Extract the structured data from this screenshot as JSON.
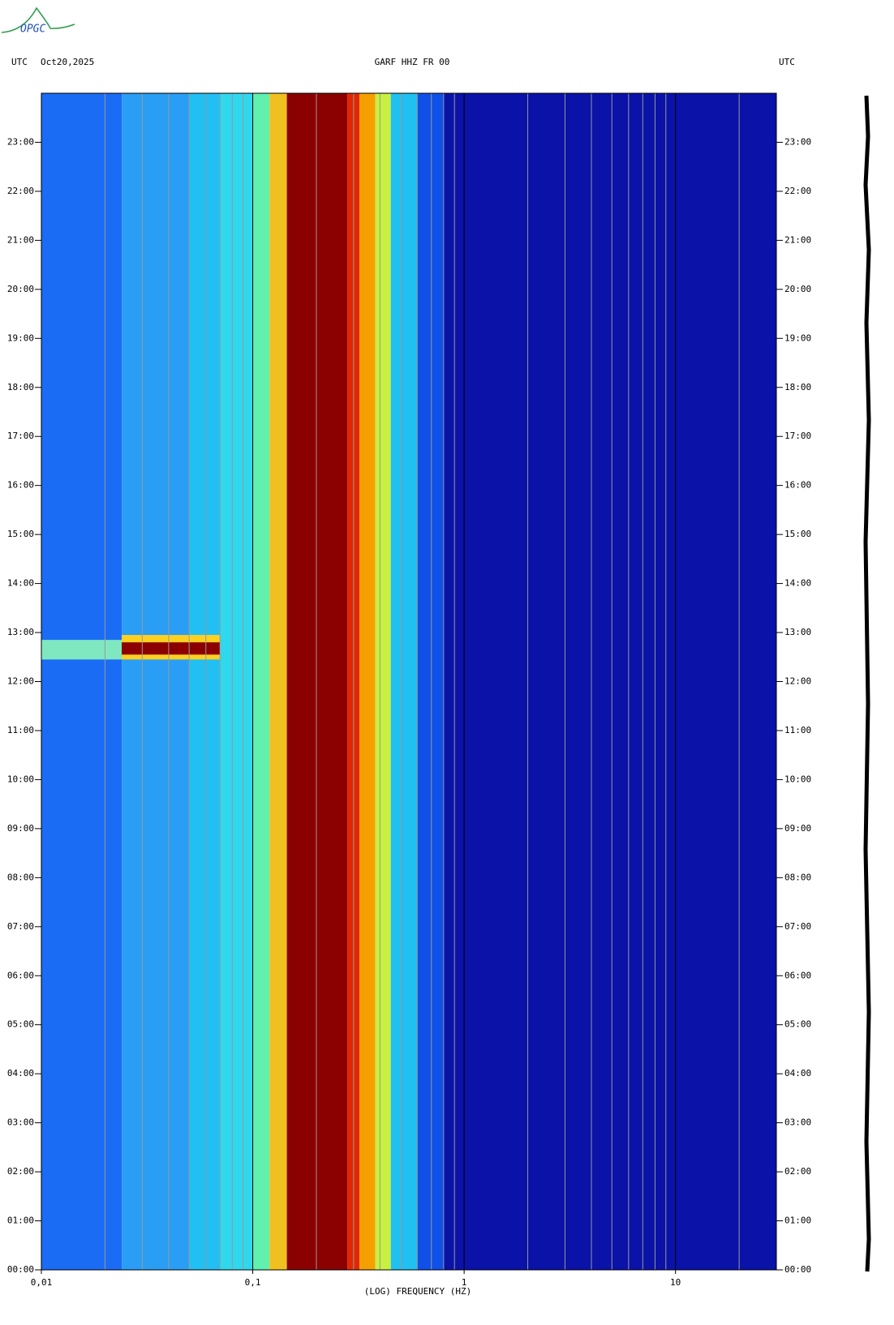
{
  "logo": "OPGC",
  "chart_data": {
    "type": "spectrogram",
    "header_left": [
      "UTC",
      "Oct20,2025"
    ],
    "title": "GARF HHZ FR 00",
    "header_right": "UTC",
    "xlabel": "(LOG) FREQUENCY (HZ)",
    "xlog": true,
    "xlim": [
      0.01,
      30
    ],
    "xticks": [
      {
        "value": 0.01,
        "label": "0,01"
      },
      {
        "value": 0.1,
        "label": "0,1"
      },
      1,
      10
    ],
    "xgrid": [
      0.02,
      0.03,
      0.04,
      0.05,
      0.06,
      0.07,
      0.08,
      0.09,
      0.2,
      0.3,
      0.4,
      0.5,
      0.6,
      0.7,
      0.8,
      0.9,
      2,
      3,
      4,
      5,
      6,
      7,
      8,
      9,
      20
    ],
    "ylim": [
      0,
      24
    ],
    "yticks": [
      {
        "value": 0,
        "label": "00:00"
      },
      {
        "value": 1,
        "label": "01:00"
      },
      {
        "value": 2,
        "label": "02:00"
      },
      {
        "value": 3,
        "label": "03:00"
      },
      {
        "value": 4,
        "label": "04:00"
      },
      {
        "value": 5,
        "label": "05:00"
      },
      {
        "value": 6,
        "label": "06:00"
      },
      {
        "value": 7,
        "label": "07:00"
      },
      {
        "value": 8,
        "label": "08:00"
      },
      {
        "value": 9,
        "label": "09:00"
      },
      {
        "value": 10,
        "label": "10:00"
      },
      {
        "value": 11,
        "label": "11:00"
      },
      {
        "value": 12,
        "label": "12:00"
      },
      {
        "value": 13,
        "label": "13:00"
      },
      {
        "value": 14,
        "label": "14:00"
      },
      {
        "value": 15,
        "label": "15:00"
      },
      {
        "value": 16,
        "label": "16:00"
      },
      {
        "value": 17,
        "label": "17:00"
      },
      {
        "value": 18,
        "label": "18:00"
      },
      {
        "value": 19,
        "label": "19:00"
      },
      {
        "value": 20,
        "label": "20:00"
      },
      {
        "value": 21,
        "label": "21:00"
      },
      {
        "value": 22,
        "label": "22:00"
      },
      {
        "value": 23,
        "label": "23:00"
      }
    ],
    "bins": [
      0.01,
      0.024,
      0.05,
      0.07,
      0.1,
      0.12,
      0.145,
      0.28,
      0.32,
      0.38,
      0.45,
      0.6,
      0.8,
      30
    ],
    "colors": [
      "#1a6cf5",
      "#2a9ef4",
      "#22c0f2",
      "#30d8ee",
      "#60f0b0",
      "#f0c020",
      "#8b0000",
      "#e02800",
      "#f5a000",
      "#c8f040",
      "#20c0f0",
      "#1050e8",
      "#0a12a8"
    ],
    "events": [
      {
        "x": [
          0.01,
          0.024
        ],
        "y": [
          12.45,
          12.85
        ],
        "color": "#80e8c0"
      },
      {
        "x": [
          0.024,
          0.07
        ],
        "y": [
          12.45,
          12.95
        ],
        "color": "#ffd020"
      },
      {
        "x": [
          0.024,
          0.07
        ],
        "y": [
          12.55,
          12.8
        ],
        "color": "#8b0000"
      }
    ]
  }
}
